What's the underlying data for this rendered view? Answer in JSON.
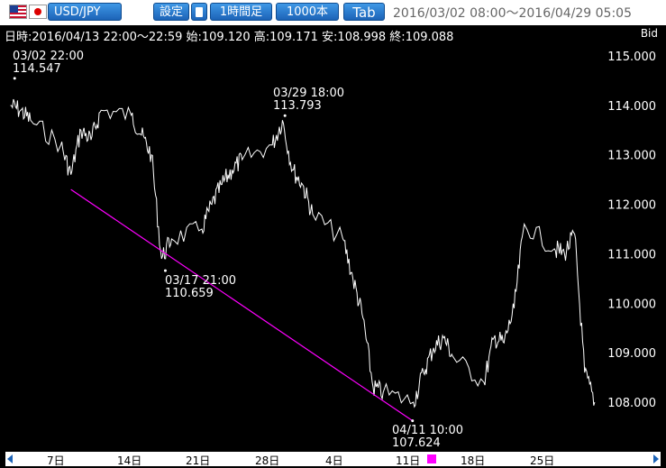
{
  "toolbar": {
    "pair": "USD/JPY",
    "settings_label": "設定",
    "timeframe_label": "1時間足",
    "bars_label": "1000本",
    "tab_label": "Tab",
    "range": "2016/03/02 08:00～2016/04/29 05:05",
    "icons": [
      "us-flag-icon",
      "japan-flag-icon",
      "calculator-icon"
    ]
  },
  "info": {
    "ohlc": "日時:2016/04/13 22:00～22:59 始:109.120 高:109.171 安:108.998 終:109.088",
    "side": "Bid"
  },
  "annotations": [
    {
      "time": "03/02 22:00",
      "price": "114.547"
    },
    {
      "time": "03/29 18:00",
      "price": "113.793"
    },
    {
      "time": "03/17 21:00",
      "price": "110.659"
    },
    {
      "time": "04/11 10:00",
      "price": "107.624"
    }
  ],
  "colors": {
    "background": "#000000",
    "price_line": "#ffffff",
    "trend_line": "#ff00ff",
    "button": "#1c63b7"
  },
  "chart_data": {
    "type": "line",
    "title": "",
    "series": [
      {
        "name": "",
        "x": [
          "03/02",
          "03/03",
          "03/04",
          "03/07",
          "03/08",
          "03/09",
          "03/10",
          "03/11",
          "03/14",
          "03/15",
          "03/16",
          "03/17",
          "03/18",
          "03/21",
          "03/22",
          "03/23",
          "03/24",
          "03/25",
          "03/28",
          "03/29",
          "03/30",
          "03/31",
          "04/01",
          "04/04",
          "04/05",
          "04/06",
          "04/07",
          "04/08",
          "04/11",
          "04/12",
          "04/13",
          "04/14",
          "04/15",
          "04/18",
          "04/19",
          "04/20",
          "04/21",
          "04/22",
          "04/25",
          "04/26",
          "04/27",
          "04/28",
          "04/29"
        ],
        "values": [
          114.0,
          113.9,
          113.7,
          113.2,
          112.6,
          113.5,
          113.3,
          113.9,
          113.8,
          113.4,
          113.0,
          110.9,
          111.3,
          111.5,
          112.0,
          112.4,
          112.7,
          112.9,
          113.2,
          113.7,
          112.7,
          112.4,
          111.8,
          111.3,
          110.5,
          109.7,
          108.3,
          108.2,
          108.0,
          108.6,
          109.1,
          109.3,
          108.9,
          108.4,
          109.3,
          109.2,
          109.9,
          111.6,
          111.1,
          111.0,
          111.4,
          108.6,
          108.0
        ]
      }
    ],
    "annotations": [
      {
        "x": "03/02 22:00",
        "y": 114.547
      },
      {
        "x": "03/29 18:00",
        "y": 113.793
      },
      {
        "x": "03/17 21:00",
        "y": 110.659
      },
      {
        "x": "04/11 10:00",
        "y": 107.624
      }
    ],
    "trend_line": {
      "from": "03/08",
      "from_y": 112.3,
      "to": "04/11 10:00",
      "to_y": 107.624
    },
    "y_ticks": [
      "115.000",
      "114.000",
      "113.000",
      "112.000",
      "111.000",
      "110.000",
      "109.000",
      "108.000"
    ],
    "x_ticks": [
      "7日",
      "14日",
      "21日",
      "28日",
      "4日",
      "11日",
      "18日",
      "25日"
    ],
    "ylim": [
      107.35,
      115.5
    ],
    "grid": false,
    "legend": "none"
  }
}
